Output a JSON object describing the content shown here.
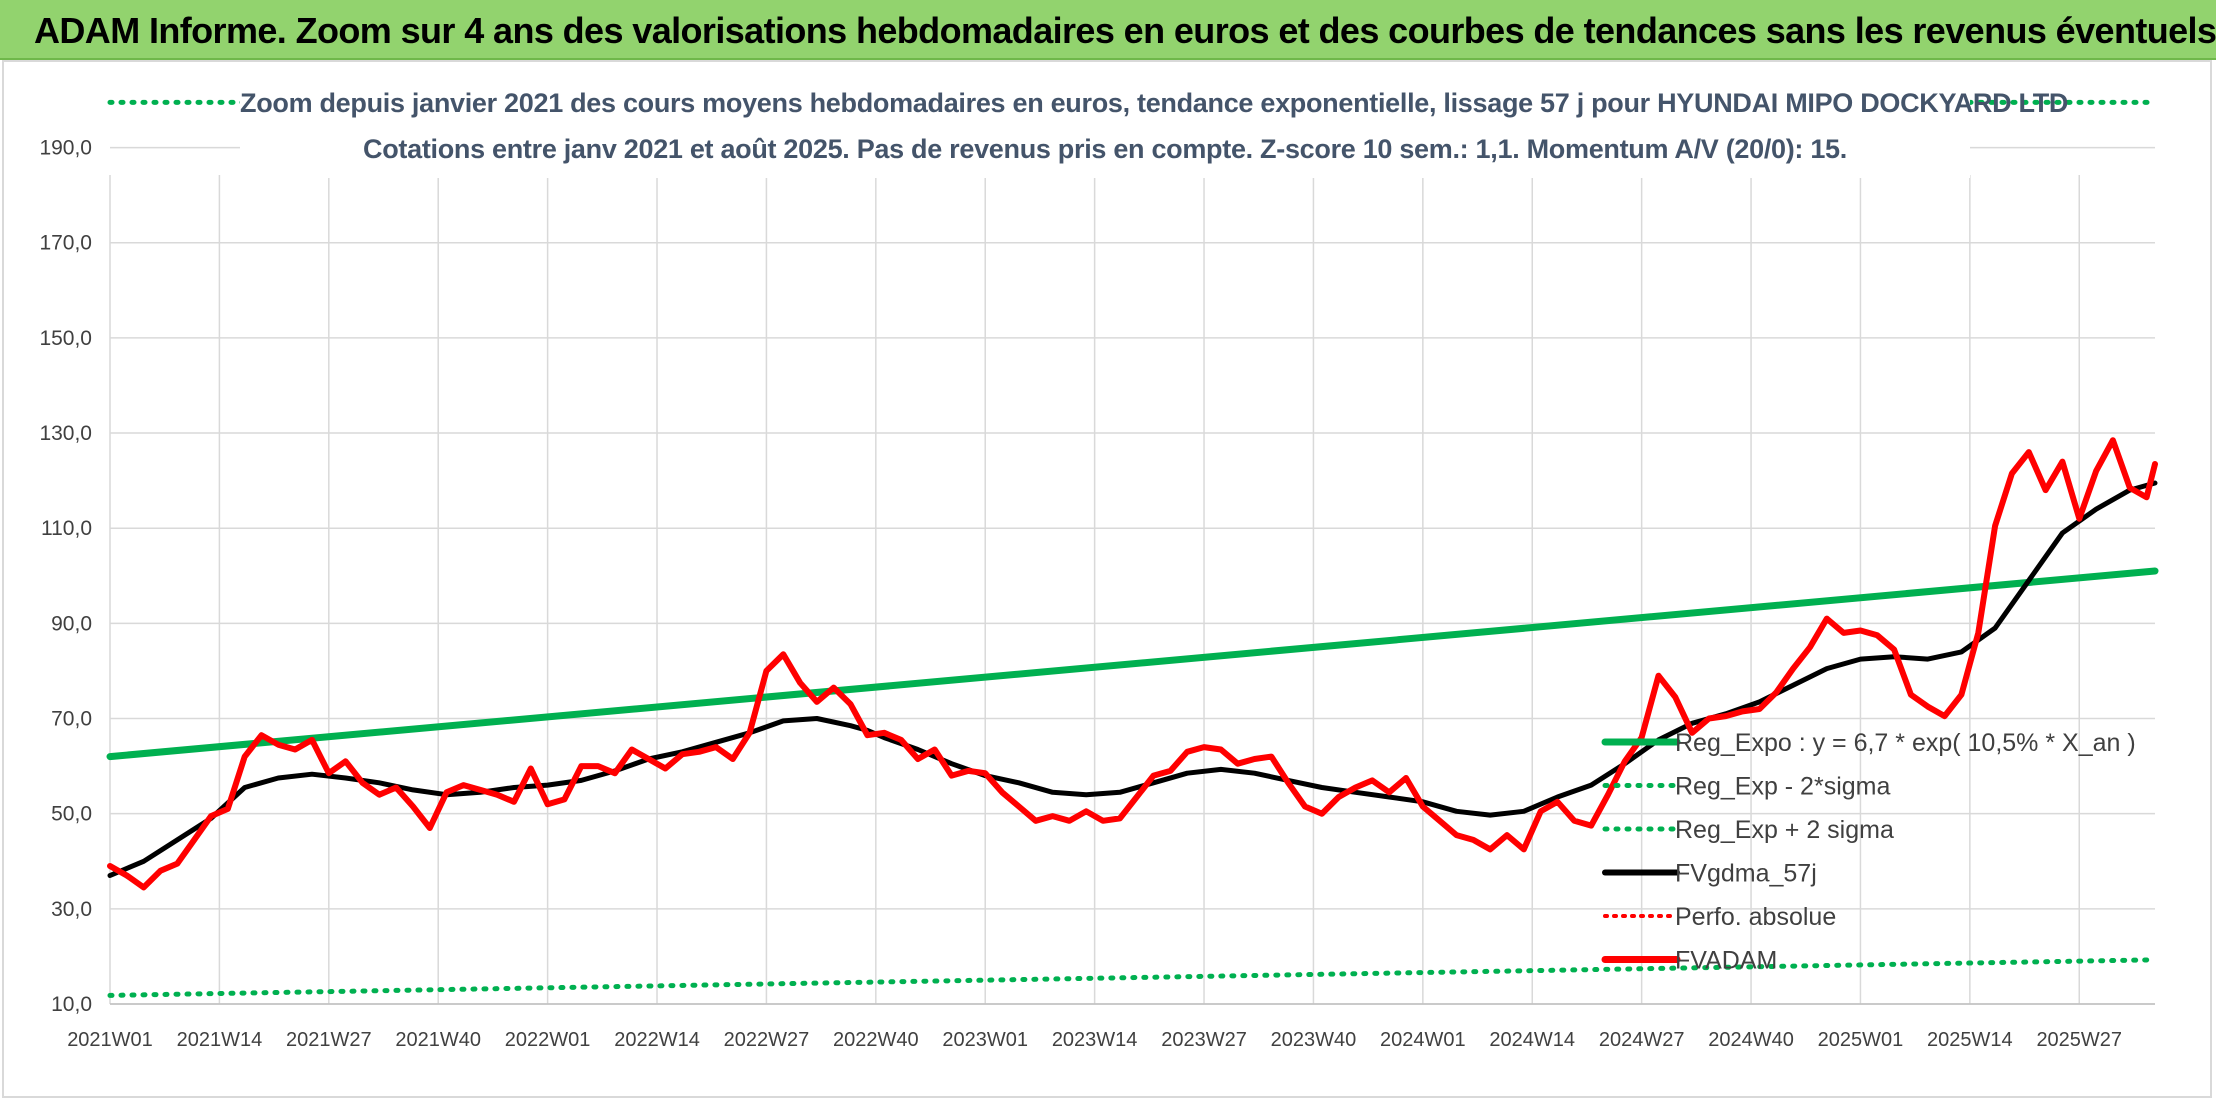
{
  "header": {
    "title": "ADAM Informe. Zoom sur 4 ans des valorisations hebdomadaires en euros et des courbes de tendances sans les revenus éventuels"
  },
  "colors": {
    "header_bg": "#92d36e",
    "reg_expo": "#00b050",
    "fvgdma": "#000000",
    "fvadam": "#ff0000",
    "perfo": "#ff0000",
    "subtitle": "#44546a"
  },
  "chart_data": {
    "type": "line",
    "subtitle_line1": "Zoom depuis janvier 2021 des cours moyens hebdomadaires en euros, tendance exponentielle, lissage 57 j pour HYUNDAI MIPO DOCKYARD LTD",
    "subtitle_line2": "Cotations entre janv 2021 et août 2025. Pas de revenus pris en compte. Z-score 10 sem.: 1,1. Momentum A/V (20/0): 15.",
    "ylim": [
      10,
      200
    ],
    "yticks": [
      "10,0",
      "30,0",
      "50,0",
      "70,0",
      "90,0",
      "110,0",
      "130,0",
      "150,0",
      "170,0",
      "190,0"
    ],
    "yticks_values": [
      10,
      30,
      50,
      70,
      90,
      110,
      130,
      150,
      170,
      190
    ],
    "xticks": [
      "2021W01",
      "2021W14",
      "2021W27",
      "2021W40",
      "2022W01",
      "2022W14",
      "2022W27",
      "2022W40",
      "2023W01",
      "2023W14",
      "2023W27",
      "2023W40",
      "2024W01",
      "2024W14",
      "2024W27",
      "2024W40",
      "2025W01",
      "2025W14",
      "2025W27"
    ],
    "xticks_weeks": [
      0,
      13,
      26,
      39,
      52,
      65,
      78,
      91,
      104,
      117,
      130,
      143,
      156,
      169,
      182,
      195,
      208,
      221,
      234
    ],
    "n_weeks": 243,
    "grid": true,
    "legend_position": "right",
    "legend": [
      {
        "key": "reg_expo",
        "label": "Reg_Expo : y = 6,7 * exp( 10,5% *  X_an )",
        "style": "solid-green"
      },
      {
        "key": "reg_minus",
        "label": "Reg_Exp - 2*sigma",
        "style": "dotted-green"
      },
      {
        "key": "reg_plus",
        "label": "Reg_Exp + 2 sigma",
        "style": "dotted-green"
      },
      {
        "key": "fvgdma",
        "label": "FVgdma_57j",
        "style": "solid-black"
      },
      {
        "key": "perfo",
        "label": "Perfo. absolue",
        "style": "dotted-red"
      },
      {
        "key": "fvadam",
        "label": "FVADAM",
        "style": "solid-red"
      }
    ],
    "series": [
      {
        "name": "Reg_Expo : y = 6,7 * exp( 10,5% *  X_an )",
        "x": [
          0,
          243
        ],
        "values": [
          62.0,
          101.0
        ]
      },
      {
        "name": "Reg_Exp - 2*sigma",
        "x": [
          0,
          243
        ],
        "values": [
          11.8,
          19.3
        ]
      },
      {
        "name": "Reg_Exp + 2 sigma",
        "x": [
          0,
          243
        ],
        "values": [
          199.5,
          199.5
        ]
      },
      {
        "name": "FVgdma_57j",
        "x": [
          0,
          4,
          8,
          12,
          16,
          20,
          24,
          28,
          32,
          36,
          40,
          44,
          48,
          52,
          56,
          60,
          64,
          68,
          72,
          76,
          80,
          84,
          88,
          90,
          92,
          96,
          100,
          104,
          108,
          112,
          116,
          120,
          124,
          128,
          132,
          136,
          140,
          144,
          148,
          152,
          156,
          160,
          164,
          168,
          172,
          176,
          180,
          184,
          188,
          192,
          196,
          200,
          204,
          208,
          212,
          216,
          220,
          224,
          228,
          232,
          236,
          240,
          243
        ],
        "values": [
          37.0,
          40.0,
          44.5,
          49.0,
          55.5,
          57.5,
          58.3,
          57.5,
          56.5,
          55.0,
          54.0,
          54.5,
          55.5,
          56.0,
          57.0,
          59.0,
          61.5,
          63.0,
          65.0,
          67.0,
          69.5,
          70.0,
          68.5,
          67.5,
          66.0,
          63.5,
          60.5,
          58.0,
          56.5,
          54.5,
          54.0,
          54.5,
          56.5,
          58.5,
          59.3,
          58.5,
          57.0,
          55.5,
          54.5,
          53.5,
          52.5,
          50.5,
          49.7,
          50.5,
          53.5,
          56.0,
          60.5,
          65.5,
          69.0,
          71.0,
          73.5,
          77.0,
          80.5,
          82.5,
          83.0,
          82.5,
          84.0,
          89.0,
          99.0,
          109.0,
          114.0,
          118.0,
          119.5
        ]
      },
      {
        "name": "FVADAM",
        "x": [
          0,
          2,
          4,
          6,
          8,
          10,
          12,
          14,
          16,
          18,
          20,
          22,
          24,
          26,
          28,
          30,
          32,
          34,
          36,
          38,
          40,
          42,
          44,
          46,
          48,
          50,
          52,
          54,
          56,
          58,
          60,
          62,
          64,
          66,
          68,
          70,
          72,
          74,
          76,
          78,
          80,
          82,
          84,
          86,
          88,
          90,
          92,
          94,
          96,
          98,
          100,
          102,
          104,
          106,
          108,
          110,
          112,
          114,
          116,
          118,
          120,
          122,
          124,
          126,
          128,
          130,
          132,
          134,
          136,
          138,
          140,
          142,
          144,
          146,
          148,
          150,
          152,
          154,
          156,
          158,
          160,
          162,
          164,
          166,
          168,
          170,
          172,
          174,
          176,
          178,
          180,
          182,
          184,
          186,
          188,
          190,
          192,
          194,
          196,
          198,
          200,
          202,
          204,
          206,
          208,
          210,
          212,
          214,
          216,
          218,
          220,
          222,
          224,
          226,
          228,
          230,
          232,
          234,
          236,
          238,
          240,
          242,
          243
        ],
        "values": [
          39.0,
          37.0,
          34.5,
          38.0,
          39.5,
          44.5,
          49.5,
          51.0,
          62.0,
          66.5,
          64.5,
          63.5,
          65.5,
          58.5,
          61.0,
          56.5,
          54.0,
          55.5,
          51.5,
          47.0,
          54.5,
          56.0,
          55.0,
          54.0,
          52.5,
          59.5,
          52.0,
          53.0,
          60.0,
          60.0,
          58.5,
          63.5,
          61.5,
          59.5,
          62.5,
          63.0,
          64.0,
          61.5,
          67.0,
          80.0,
          83.5,
          77.5,
          73.5,
          76.5,
          73.0,
          66.5,
          67.0,
          65.5,
          61.5,
          63.5,
          58.0,
          59.0,
          58.5,
          54.5,
          51.5,
          48.5,
          49.5,
          48.5,
          50.5,
          48.5,
          49.0,
          53.5,
          58.0,
          59.0,
          63.0,
          64.0,
          63.5,
          60.5,
          61.5,
          62.0,
          56.5,
          51.5,
          50.0,
          53.5,
          55.5,
          57.0,
          54.5,
          57.5,
          51.5,
          48.5,
          45.5,
          44.5,
          42.5,
          45.5,
          42.5,
          50.5,
          52.5,
          48.5,
          47.5,
          54.0,
          61.0,
          66.0,
          79.0,
          74.5,
          67.0,
          70.0,
          70.5,
          71.5,
          72.0,
          75.5,
          80.5,
          85.0,
          91.0,
          88.0,
          88.5,
          87.5,
          84.5,
          75.0,
          72.5,
          70.5,
          75.0,
          88.0,
          110.5,
          121.5,
          126.0,
          118.0,
          124.0,
          112.0,
          122.0,
          128.5,
          118.5,
          116.5,
          123.5
        ]
      }
    ]
  }
}
